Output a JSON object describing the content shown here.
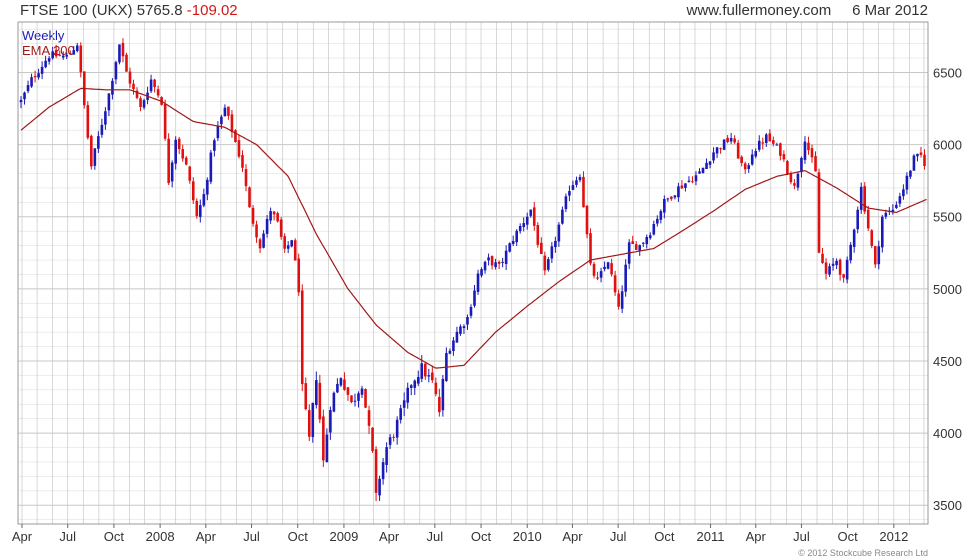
{
  "header": {
    "symbol": "FTSE 100 (UKX)",
    "last": "5765.8",
    "change": "-109.02",
    "site": "www.fullermoney.com",
    "date": "6 Mar 2012"
  },
  "credit": "© 2012 Stockcube Research Ltd",
  "colors": {
    "up": "#1a1ab8",
    "down": "#e01010",
    "ema": "#a01818",
    "grid": "#c8c8c8"
  },
  "chart_data": {
    "type": "candlestick",
    "title": "FTSE 100 (UKX)",
    "legend": [
      "Weekly",
      "EMA 200"
    ],
    "legend_position": "top-left",
    "grid": true,
    "ylim": [
      3370,
      6850
    ],
    "yticks": [
      3500,
      4000,
      4500,
      5000,
      5500,
      6000,
      6500
    ],
    "xticks": [
      "Apr",
      "Jul",
      "Oct",
      "2008",
      "Apr",
      "Jul",
      "Oct",
      "2009",
      "Apr",
      "Jul",
      "Oct",
      "2010",
      "Apr",
      "Jul",
      "Oct",
      "2011",
      "Apr",
      "Jul",
      "Oct",
      "2012"
    ],
    "close_anchors": [
      [
        "2007-03-30",
        6300
      ],
      [
        "2007-04-20",
        6450
      ],
      [
        "2007-05-25",
        6620
      ],
      [
        "2007-06-29",
        6610
      ],
      [
        "2007-07-20",
        6700
      ],
      [
        "2007-08-10",
        6050
      ],
      [
        "2007-08-17",
        5850
      ],
      [
        "2007-09-21",
        6350
      ],
      [
        "2007-10-12",
        6700
      ],
      [
        "2007-10-26",
        6500
      ],
      [
        "2007-11-23",
        6250
      ],
      [
        "2007-12-14",
        6450
      ],
      [
        "2008-01-04",
        6300
      ],
      [
        "2008-01-18",
        5750
      ],
      [
        "2008-02-01",
        6050
      ],
      [
        "2008-02-22",
        5850
      ],
      [
        "2008-03-14",
        5500
      ],
      [
        "2008-03-28",
        5650
      ],
      [
        "2008-04-18",
        6050
      ],
      [
        "2008-05-09",
        6250
      ],
      [
        "2008-05-23",
        6100
      ],
      [
        "2008-06-13",
        5850
      ],
      [
        "2008-06-27",
        5550
      ],
      [
        "2008-07-18",
        5300
      ],
      [
        "2008-08-08",
        5550
      ],
      [
        "2008-08-22",
        5450
      ],
      [
        "2008-09-05",
        5250
      ],
      [
        "2008-09-19",
        5350
      ],
      [
        "2008-10-03",
        5000
      ],
      [
        "2008-10-10",
        4300
      ],
      [
        "2008-10-24",
        3950
      ],
      [
        "2008-11-07",
        4400
      ],
      [
        "2008-11-21",
        3800
      ],
      [
        "2008-12-05",
        4200
      ],
      [
        "2008-12-26",
        4400
      ],
      [
        "2009-01-16",
        4200
      ],
      [
        "2009-02-06",
        4350
      ],
      [
        "2009-02-27",
        3850
      ],
      [
        "2009-03-06",
        3550
      ],
      [
        "2009-03-13",
        3700
      ],
      [
        "2009-03-27",
        3900
      ],
      [
        "2009-04-10",
        4000
      ],
      [
        "2009-05-01",
        4200
      ],
      [
        "2009-05-15",
        4350
      ],
      [
        "2009-06-05",
        4450
      ],
      [
        "2009-06-26",
        4350
      ],
      [
        "2009-07-10",
        4150
      ],
      [
        "2009-07-24",
        4550
      ],
      [
        "2009-08-14",
        4700
      ],
      [
        "2009-09-04",
        4800
      ],
      [
        "2009-09-25",
        5100
      ],
      [
        "2009-10-16",
        5200
      ],
      [
        "2009-11-06",
        5150
      ],
      [
        "2009-12-04",
        5350
      ],
      [
        "2010-01-08",
        5550
      ],
      [
        "2010-02-05",
        5100
      ],
      [
        "2010-02-26",
        5350
      ],
      [
        "2010-03-26",
        5700
      ],
      [
        "2010-04-16",
        5800
      ],
      [
        "2010-05-07",
        5150
      ],
      [
        "2010-05-21",
        5050
      ],
      [
        "2010-06-11",
        5200
      ],
      [
        "2010-07-02",
        4850
      ],
      [
        "2010-07-23",
        5300
      ],
      [
        "2010-08-13",
        5300
      ],
      [
        "2010-09-03",
        5400
      ],
      [
        "2010-10-01",
        5600
      ],
      [
        "2010-10-29",
        5700
      ],
      [
        "2010-11-19",
        5750
      ],
      [
        "2010-12-10",
        5800
      ],
      [
        "2011-01-07",
        5950
      ],
      [
        "2011-02-11",
        6050
      ],
      [
        "2011-03-11",
        5800
      ],
      [
        "2011-03-25",
        5950
      ],
      [
        "2011-04-22",
        6050
      ],
      [
        "2011-05-20",
        5950
      ],
      [
        "2011-06-17",
        5700
      ],
      [
        "2011-07-08",
        6050
      ],
      [
        "2011-07-29",
        5800
      ],
      [
        "2011-08-05",
        5250
      ],
      [
        "2011-08-19",
        5100
      ],
      [
        "2011-09-09",
        5200
      ],
      [
        "2011-09-23",
        5050
      ],
      [
        "2011-10-07",
        5300
      ],
      [
        "2011-10-28",
        5700
      ],
      [
        "2011-11-25",
        5150
      ],
      [
        "2011-12-09",
        5500
      ],
      [
        "2011-12-30",
        5550
      ],
      [
        "2012-01-20",
        5700
      ],
      [
        "2012-02-10",
        5900
      ],
      [
        "2012-02-24",
        5920
      ],
      [
        "2012-03-02",
        5875
      ],
      [
        "2012-03-06",
        5766
      ]
    ],
    "ema_anchors": [
      [
        "2007-03-30",
        6100
      ],
      [
        "2007-05-25",
        6260
      ],
      [
        "2007-07-27",
        6390
      ],
      [
        "2007-09-14",
        6380
      ],
      [
        "2007-11-02",
        6380
      ],
      [
        "2008-01-04",
        6300
      ],
      [
        "2008-03-07",
        6160
      ],
      [
        "2008-05-09",
        6120
      ],
      [
        "2008-07-11",
        6000
      ],
      [
        "2008-09-12",
        5780
      ],
      [
        "2008-11-07",
        5380
      ],
      [
        "2009-01-09",
        5000
      ],
      [
        "2009-03-06",
        4750
      ],
      [
        "2009-05-08",
        4560
      ],
      [
        "2009-07-03",
        4450
      ],
      [
        "2009-08-28",
        4470
      ],
      [
        "2009-10-30",
        4700
      ],
      [
        "2010-01-01",
        4880
      ],
      [
        "2010-03-05",
        5050
      ],
      [
        "2010-05-07",
        5200
      ],
      [
        "2010-07-09",
        5240
      ],
      [
        "2010-09-10",
        5280
      ],
      [
        "2010-11-05",
        5400
      ],
      [
        "2011-01-07",
        5540
      ],
      [
        "2011-03-11",
        5690
      ],
      [
        "2011-05-13",
        5780
      ],
      [
        "2011-07-08",
        5820
      ],
      [
        "2011-09-09",
        5700
      ],
      [
        "2011-11-11",
        5560
      ],
      [
        "2012-01-06",
        5530
      ],
      [
        "2012-03-06",
        5620
      ]
    ]
  }
}
